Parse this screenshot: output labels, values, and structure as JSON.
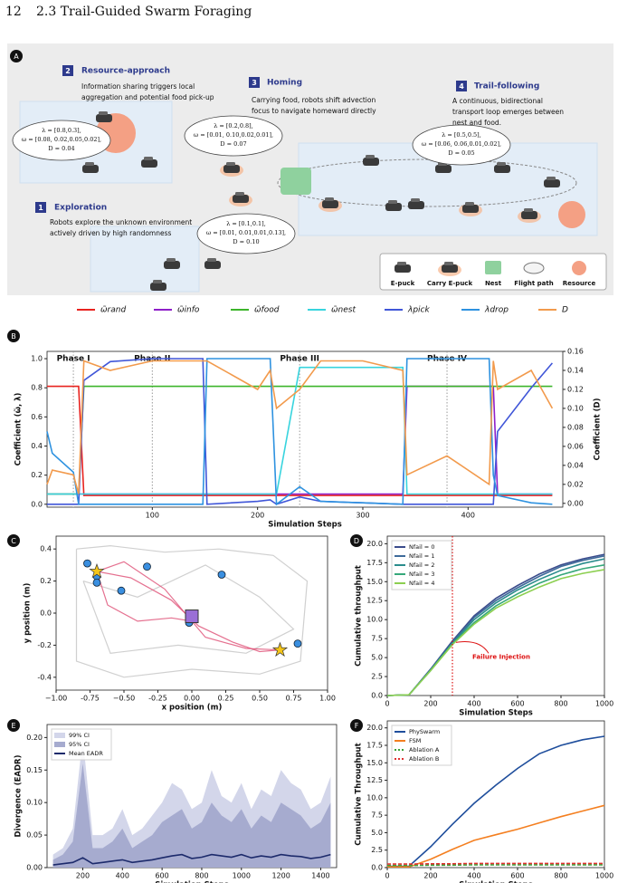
{
  "header": {
    "page_number": "12",
    "section": "2.3 Trail-Guided Swarm Foraging"
  },
  "panel_a": {
    "label": "A",
    "steps": [
      {
        "num": "2",
        "title": "Resource-approach",
        "text": [
          "Information sharing triggers local",
          "aggregation and potential food pick-up"
        ]
      },
      {
        "num": "1",
        "title": "Exploration",
        "text": [
          "Robots explore the unknown environment",
          "actively driven by high randomness"
        ]
      },
      {
        "num": "3",
        "title": "Homing",
        "text": [
          "Carrying food, robots shift advection",
          "focus to navigate homeward directly"
        ]
      },
      {
        "num": "4",
        "title": "Trail-following",
        "text": [
          "A continuous, bidirectional",
          "transport loop emerges between",
          "nest and food."
        ]
      }
    ],
    "bubbles": [
      [
        "λ = [0.8,0.3],",
        "ω = [0.08, 0.02,0.05,0.02],",
        "D = 0.04"
      ],
      [
        "λ = [0.2,0.8],",
        "ω = [0.01, 0.10,0.02,0.01],",
        "D = 0.07"
      ],
      [
        "λ = [0.5,0.5],",
        "ω = [0.06, 0.06,0.01,0.02],",
        "D = 0.05"
      ],
      [
        "λ = [0.1,0.1],",
        "ω = [0.01, 0.01,0.01,0.13],",
        "D = 0.10"
      ]
    ],
    "legend": [
      "E-puck",
      "Carry E-puck",
      "Nest",
      "Flight path",
      "Resource"
    ]
  },
  "chart_data": [
    {
      "type": "line",
      "label": "B",
      "xlabel": "Simulation Steps",
      "ylabel": "Coefficient (ω̃, λ)",
      "y2label": "Coefficient (D)",
      "legend": "top-outside",
      "x": [
        0,
        5,
        25,
        30,
        35,
        60,
        100,
        148,
        152,
        200,
        212,
        218,
        240,
        260,
        300,
        338,
        342,
        380,
        420,
        424,
        428,
        460,
        480
      ],
      "xlim": [
        0,
        490
      ],
      "xticks": [
        100,
        200,
        300,
        400
      ],
      "ylim": [
        -0.02,
        1.05
      ],
      "yticks": [
        {
          "value": 0,
          "label": "0.0"
        },
        0.2,
        0.4,
        0.6,
        0.8,
        {
          "value": 1,
          "label": "1.0"
        }
      ],
      "y2lim": [
        -0.004,
        0.16
      ],
      "y2ticks": [
        {
          "value": 0,
          "label": "0.00"
        },
        0.02,
        0.04,
        0.06,
        0.08,
        {
          "value": 0.1,
          "label": "0.10"
        },
        0.12,
        0.14,
        0.16
      ],
      "phases": [
        {
          "label": "Phase I",
          "x": 25
        },
        {
          "label": "Phase II",
          "x": 100
        },
        {
          "label": "Phase III",
          "x": 240
        },
        {
          "label": "Phase IV",
          "x": 380
        }
      ],
      "series": [
        {
          "name": "ω̃rand",
          "color": "#e8231f",
          "values": [
            0.81,
            0.81,
            0.81,
            0.81,
            0.06,
            0.06,
            0.06,
            0.06,
            0.06,
            0.06,
            0.06,
            0.06,
            0.06,
            0.06,
            0.06,
            0.06,
            0.06,
            0.06,
            0.06,
            0.06,
            0.06,
            0.06,
            0.06
          ]
        },
        {
          "name": "ω̃info",
          "color": "#8e1fc9",
          "values": [
            0.07,
            0.07,
            0.07,
            0.07,
            0.07,
            0.07,
            0.07,
            0.07,
            0.07,
            0.07,
            0.07,
            0.07,
            0.07,
            0.07,
            0.07,
            0.07,
            0.81,
            0.81,
            0.81,
            0.81,
            0.07,
            0.07,
            0.07
          ]
        },
        {
          "name": "ω̃food",
          "color": "#3cb52b",
          "values": [
            0.07,
            0.07,
            0.07,
            0.07,
            0.81,
            0.81,
            0.81,
            0.81,
            0.81,
            0.81,
            0.81,
            0.81,
            0.81,
            0.81,
            0.81,
            0.81,
            0.81,
            0.81,
            0.81,
            0.81,
            0.81,
            0.81,
            0.81
          ]
        },
        {
          "name": "ω̃nest",
          "color": "#38d4de",
          "values": [
            0.07,
            0.07,
            0.07,
            0.07,
            0.07,
            0.07,
            0.07,
            0.07,
            0.07,
            0.07,
            0.07,
            0.07,
            0.94,
            0.94,
            0.94,
            0.94,
            0.07,
            0.07,
            0.07,
            0.07,
            0.07,
            0.07,
            0.07
          ]
        },
        {
          "name": "λpick",
          "color": "#4056d8",
          "values": [
            0,
            0,
            0,
            0,
            0.85,
            0.98,
            1.0,
            1.0,
            0,
            0.02,
            0.03,
            0,
            0.05,
            0.02,
            0.01,
            0,
            0,
            0,
            0,
            0,
            0.5,
            0.8,
            0.97
          ]
        },
        {
          "name": "λdrop",
          "color": "#2e92e0",
          "values": [
            0.5,
            0.35,
            0.22,
            0,
            0,
            0,
            0,
            0,
            1.0,
            1.0,
            1.0,
            0,
            0.12,
            0.02,
            0.01,
            0,
            1.0,
            1.0,
            1.0,
            0.2,
            0.06,
            0.01,
            0
          ]
        },
        {
          "name": "D",
          "color": "#f29a4c",
          "axis": "y2",
          "values": [
            0.02,
            0.035,
            0.03,
            0.01,
            0.15,
            0.14,
            0.15,
            0.15,
            0.15,
            0.12,
            0.14,
            0.1,
            0.12,
            0.15,
            0.15,
            0.14,
            0.03,
            0.05,
            0.02,
            0.15,
            0.12,
            0.14,
            0.1
          ]
        }
      ]
    },
    {
      "type": "scatter",
      "label": "C",
      "xlabel": "x position (m)",
      "ylabel": "y position (m)",
      "xlim": [
        -1,
        1
      ],
      "xticks": [
        {
          "value": -1,
          "label": "−1.00"
        },
        -0.75,
        {
          "value": -0.5,
          "label": "−0.50"
        },
        -0.25,
        {
          "value": 0,
          "label": "0.00"
        },
        0.25,
        {
          "value": 0.5,
          "label": "0.50"
        },
        0.75,
        {
          "value": 1,
          "label": "1.00"
        }
      ],
      "ylim": [
        -0.48,
        0.48
      ],
      "yticks": [
        -0.4,
        -0.2,
        {
          "value": 0,
          "label": "0.0"
        },
        0.2,
        0.4
      ],
      "trajectories": [
        {
          "color": "#c8c8c8",
          "x": [
            -0.85,
            -0.6,
            -0.2,
            0.2,
            0.6,
            0.85,
            0.8,
            0.5,
            0.0,
            -0.5,
            -0.85,
            -0.85
          ],
          "y": [
            0.4,
            0.42,
            0.38,
            0.4,
            0.36,
            0.2,
            -0.3,
            -0.38,
            -0.35,
            -0.4,
            -0.3,
            0.4
          ]
        },
        {
          "color": "#c8c8c8",
          "x": [
            -0.8,
            -0.4,
            0.1,
            0.5,
            0.75,
            0.4,
            -0.1,
            -0.6,
            -0.8
          ],
          "y": [
            0.2,
            0.1,
            0.3,
            0.1,
            -0.1,
            -0.25,
            -0.2,
            -0.25,
            0.2
          ]
        },
        {
          "color": "#e0587c",
          "x": [
            -0.7,
            -0.45,
            -0.15,
            0.05,
            0.3,
            0.5,
            0.65
          ],
          "y": [
            0.26,
            0.22,
            0.08,
            -0.08,
            -0.18,
            -0.24,
            -0.23
          ]
        },
        {
          "color": "#e0587c",
          "x": [
            -0.7,
            -0.62,
            -0.4,
            -0.15,
            0.0
          ],
          "y": [
            0.26,
            0.05,
            -0.05,
            -0.03,
            -0.05
          ]
        },
        {
          "color": "#e0587c",
          "x": [
            -0.7,
            -0.5,
            -0.2,
            0.1,
            0.4,
            0.65
          ],
          "y": [
            0.26,
            0.32,
            0.15,
            -0.15,
            -0.22,
            -0.23
          ]
        }
      ],
      "points": {
        "color": "#3a8fe0",
        "x": [
          -0.77,
          -0.7,
          -0.7,
          -0.52,
          -0.33,
          0.22,
          -0.02,
          0.78
        ],
        "y": [
          0.31,
          0.23,
          0.19,
          0.14,
          0.29,
          0.24,
          -0.06,
          -0.19
        ]
      },
      "stars": {
        "color": "#f5c518",
        "x": [
          -0.7,
          0.65
        ],
        "y": [
          0.26,
          -0.23
        ]
      },
      "nest": {
        "color": "#9a6fd6",
        "x": [
          0.0
        ],
        "y": [
          -0.02
        ]
      }
    },
    {
      "type": "line",
      "label": "D",
      "xlabel": "Simulation Steps",
      "ylabel": "Cumulative throughput",
      "legend": "upper left",
      "x": [
        0,
        100,
        200,
        300,
        400,
        500,
        600,
        700,
        800,
        900,
        1000
      ],
      "xlim": [
        0,
        1000
      ],
      "xticks": [
        0,
        200,
        400,
        600,
        800,
        1000
      ],
      "ylim": [
        0,
        21
      ],
      "yticks": [
        {
          "value": 0,
          "label": "0.0"
        },
        2.5,
        {
          "value": 5,
          "label": "5.0"
        },
        7.5,
        {
          "value": 10,
          "label": "10.0"
        },
        12.5,
        {
          "value": 15,
          "label": "15.0"
        },
        17.5,
        {
          "value": 20,
          "label": "20.0"
        }
      ],
      "annotation": {
        "text": "Failure Injection",
        "x": 300,
        "y": 7
      },
      "series": [
        {
          "name": "Nfail = 0",
          "color": "#3b4c8c",
          "values": [
            0,
            0.1,
            3.5,
            7.2,
            10.5,
            12.8,
            14.5,
            16,
            17.2,
            18,
            18.6
          ]
        },
        {
          "name": "Nfail = 1",
          "color": "#3e6a9a",
          "values": [
            0,
            0.1,
            3.4,
            7,
            10.3,
            12.5,
            14.2,
            15.7,
            17,
            17.8,
            18.4
          ]
        },
        {
          "name": "Nfail = 2",
          "color": "#2a8c8c",
          "values": [
            0,
            0.1,
            3.4,
            6.9,
            10,
            12.2,
            13.9,
            15.3,
            16.5,
            17.4,
            18
          ]
        },
        {
          "name": "Nfail = 3",
          "color": "#36a87a",
          "values": [
            0,
            0.1,
            3.3,
            6.8,
            9.6,
            11.8,
            13.4,
            14.8,
            15.9,
            16.7,
            17.2
          ]
        },
        {
          "name": "Nfail = 4",
          "color": "#8ccf50",
          "values": [
            0,
            0.1,
            3.3,
            6.7,
            9.4,
            11.5,
            13,
            14.3,
            15.4,
            16.1,
            16.6
          ]
        }
      ]
    },
    {
      "type": "line",
      "label": "E",
      "xlabel": "Simulation Steps",
      "ylabel": "Divergence (EADR)",
      "legend": "upper left",
      "x": [
        50,
        100,
        150,
        200,
        250,
        300,
        350,
        400,
        450,
        500,
        550,
        600,
        650,
        700,
        750,
        800,
        850,
        900,
        950,
        1000,
        1050,
        1100,
        1150,
        1200,
        1250,
        1300,
        1350,
        1400,
        1450
      ],
      "xlim": [
        20,
        1480
      ],
      "xticks": [
        200,
        400,
        600,
        800,
        1000,
        1200,
        1400
      ],
      "ylim": [
        0,
        0.22
      ],
      "yticks": [
        {
          "value": 0,
          "label": "0.00"
        },
        0.05,
        {
          "value": 0.1,
          "label": "0.10"
        },
        0.15,
        {
          "value": 0.2,
          "label": "0.20"
        }
      ],
      "series": [
        {
          "name": "99% CI",
          "color": "#d3d6ea",
          "style": "area",
          "values": [
            0.02,
            0.03,
            0.06,
            0.2,
            0.05,
            0.05,
            0.06,
            0.09,
            0.05,
            0.06,
            0.08,
            0.1,
            0.13,
            0.12,
            0.09,
            0.1,
            0.15,
            0.11,
            0.1,
            0.13,
            0.09,
            0.12,
            0.11,
            0.15,
            0.13,
            0.12,
            0.09,
            0.1,
            0.14
          ]
        },
        {
          "name": "95% CI",
          "color": "#a6abcf",
          "style": "area",
          "values": [
            0.012,
            0.02,
            0.04,
            0.16,
            0.03,
            0.03,
            0.04,
            0.06,
            0.03,
            0.04,
            0.05,
            0.07,
            0.08,
            0.09,
            0.06,
            0.07,
            0.1,
            0.08,
            0.07,
            0.09,
            0.06,
            0.08,
            0.07,
            0.1,
            0.09,
            0.08,
            0.06,
            0.07,
            0.1
          ]
        },
        {
          "name": "Mean EADR",
          "color": "#1c2a6b",
          "values": [
            0.004,
            0.006,
            0.008,
            0.015,
            0.006,
            0.008,
            0.01,
            0.012,
            0.008,
            0.01,
            0.012,
            0.015,
            0.018,
            0.02,
            0.014,
            0.016,
            0.02,
            0.018,
            0.016,
            0.02,
            0.015,
            0.018,
            0.016,
            0.02,
            0.018,
            0.017,
            0.014,
            0.016,
            0.02
          ]
        }
      ]
    },
    {
      "type": "line",
      "label": "F",
      "xlabel": "Simulation Steps",
      "ylabel": "Cumulative Throughput",
      "legend": "upper left",
      "x": [
        0,
        100,
        200,
        300,
        400,
        500,
        600,
        700,
        800,
        900,
        1000
      ],
      "xlim": [
        0,
        1000
      ],
      "xticks": [
        0,
        200,
        400,
        600,
        800,
        1000
      ],
      "ylim": [
        0,
        21
      ],
      "yticks": [
        {
          "value": 0,
          "label": "0.0"
        },
        2.5,
        {
          "value": 5,
          "label": "5.0"
        },
        7.5,
        {
          "value": 10,
          "label": "10.0"
        },
        12.5,
        {
          "value": 15,
          "label": "15.0"
        },
        17.5,
        {
          "value": 20,
          "label": "20.0"
        }
      ],
      "series": [
        {
          "name": "PhySwarm",
          "color": "#1f4e9c",
          "values": [
            0.2,
            0.2,
            3,
            6.2,
            9.2,
            11.8,
            14.2,
            16.3,
            17.5,
            18.3,
            18.8
          ]
        },
        {
          "name": "FSM",
          "color": "#f47f20",
          "values": [
            0.1,
            0.1,
            1.2,
            2.6,
            3.9,
            4.7,
            5.5,
            6.4,
            7.3,
            8.1,
            8.9
          ]
        },
        {
          "name": "Ablation A",
          "color": "#3aa23a",
          "dash": true,
          "values": [
            0.3,
            0.3,
            0.35,
            0.35,
            0.4,
            0.4,
            0.4,
            0.4,
            0.4,
            0.4,
            0.4
          ]
        },
        {
          "name": "Ablation B",
          "color": "#e03030",
          "dash": true,
          "values": [
            0.5,
            0.5,
            0.55,
            0.55,
            0.6,
            0.6,
            0.6,
            0.6,
            0.6,
            0.6,
            0.6
          ]
        }
      ]
    }
  ]
}
